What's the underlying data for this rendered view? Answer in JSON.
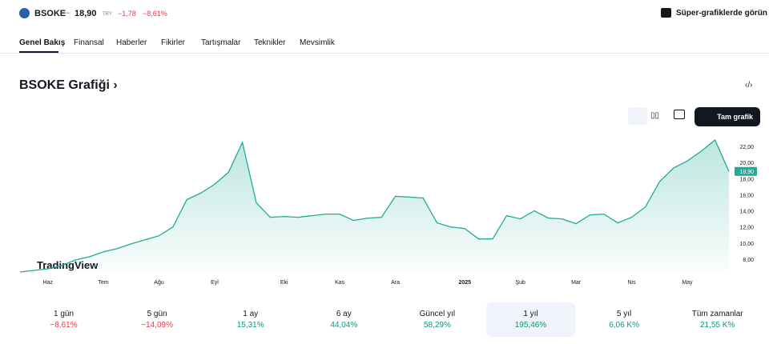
{
  "header": {
    "symbol": "BSOKE",
    "price": "18,90",
    "currency": "TRY",
    "change": "−1,78",
    "change_pct": "−8,61%",
    "promo": "Süper-grafiklerde görün"
  },
  "tabs": [
    "Genel Bakış",
    "Finansal",
    "Haberler",
    "Fikirler",
    "Tartışmalar",
    "Teknikler",
    "Mevsimlik"
  ],
  "section_title": "BSOKE Grafiği",
  "toolbar": {
    "full_chart": "Tam grafik"
  },
  "chart_data": {
    "type": "area",
    "watermark": "TradingView",
    "categories": [
      null,
      null,
      "Haz",
      null,
      null,
      null,
      "Tem",
      null,
      null,
      null,
      "Ağu",
      null,
      null,
      null,
      "Eyl",
      null,
      null,
      null,
      null,
      "Eki",
      null,
      null,
      null,
      "Kas",
      null,
      null,
      null,
      "Ara",
      null,
      null,
      null,
      null,
      "2025",
      null,
      null,
      null,
      "Şub",
      null,
      null,
      null,
      "Mar",
      null,
      null,
      null,
      "Nis",
      null,
      null,
      null,
      "May",
      null,
      null,
      null
    ],
    "series": [
      {
        "color": "#22ab94",
        "values": [
          6.4,
          6.6,
          6.8,
          7.2,
          7.9,
          8.3,
          8.9,
          9.3,
          9.9,
          10.4,
          10.9,
          12.0,
          15.4,
          16.2,
          17.3,
          18.8,
          22.5,
          15.0,
          13.2,
          13.3,
          13.2,
          13.4,
          13.6,
          13.6,
          12.8,
          13.1,
          13.2,
          15.8,
          15.7,
          15.6,
          12.5,
          12.0,
          11.8,
          10.5,
          10.5,
          13.4,
          13.0,
          14.0,
          13.1,
          13.0,
          12.4,
          13.5,
          13.6,
          12.5,
          13.2,
          14.5,
          17.6,
          19.3,
          20.2,
          21.4,
          22.8,
          18.9
        ]
      }
    ],
    "ylim": [
      6.2,
      23.3
    ],
    "yticks": [
      {
        "value": 8,
        "label": "8,00"
      },
      {
        "value": 10,
        "label": "10,00"
      },
      {
        "value": 12,
        "label": "12,00"
      },
      {
        "value": 14,
        "label": "14,00"
      },
      {
        "value": 16,
        "label": "16,00"
      },
      {
        "value": 18,
        "label": "18,00"
      },
      {
        "value": 20,
        "label": "20,00"
      },
      {
        "value": 22,
        "label": "22,00"
      }
    ]
  },
  "periods": [
    {
      "label": "1 gün",
      "change": "−8,61%"
    },
    {
      "label": "5 gün",
      "change": "−14,09%"
    },
    {
      "label": "1 ay",
      "change": "15,31%"
    },
    {
      "label": "6 ay",
      "change": "44,04%"
    },
    {
      "label": "Güncel yıl",
      "change": "58,29%"
    },
    {
      "label": "1 yıl",
      "change": "195,46%",
      "selected": true
    },
    {
      "label": "5 yıl",
      "change": "6,06 K%"
    },
    {
      "label": "Tüm zamanlar",
      "change": "21,55 K%"
    }
  ]
}
